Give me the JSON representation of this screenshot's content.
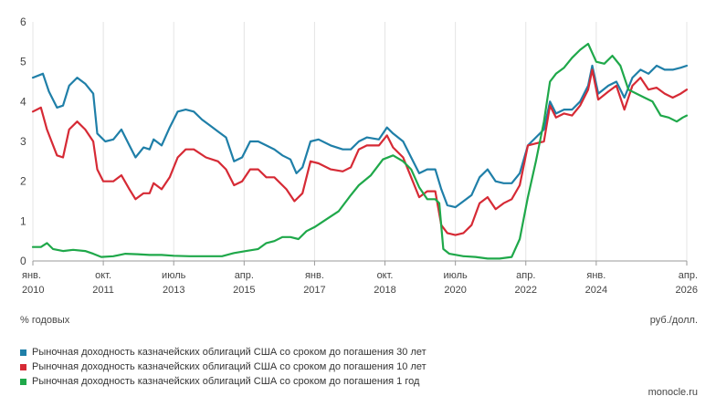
{
  "chart_data": {
    "type": "line",
    "ylabel": "% годовых",
    "unit_note": "руб./долл.",
    "ylim": [
      0,
      6
    ],
    "yticks": [
      "0",
      "1",
      "2",
      "3",
      "4",
      "5",
      "6"
    ],
    "xlim": [
      2010.0,
      2026.25
    ],
    "xticks": [
      {
        "x": 2010.0,
        "month": "янв.",
        "year": "2010"
      },
      {
        "x": 2011.75,
        "month": "окт.",
        "year": "2011"
      },
      {
        "x": 2013.5,
        "month": "июль",
        "year": "2013"
      },
      {
        "x": 2015.25,
        "month": "апр.",
        "year": "2015"
      },
      {
        "x": 2017.0,
        "month": "янв.",
        "year": "2017"
      },
      {
        "x": 2018.75,
        "month": "окт.",
        "year": "2018"
      },
      {
        "x": 2020.5,
        "month": "июль",
        "year": "2020"
      },
      {
        "x": 2022.25,
        "month": "апр.",
        "year": "2022"
      },
      {
        "x": 2024.0,
        "month": "янв.",
        "year": "2024"
      },
      {
        "x": 2026.25,
        "month": "апр.",
        "year": "2026"
      }
    ],
    "grid": "vertical",
    "legend_position": "bottom-left",
    "series": [
      {
        "name": "Рыночная доходность казначейских облигаций США со сроком до погашения 30 лет",
        "color": "#1f7fa8",
        "points": [
          [
            2010.0,
            4.6
          ],
          [
            2010.25,
            4.7
          ],
          [
            2010.4,
            4.25
          ],
          [
            2010.6,
            3.85
          ],
          [
            2010.75,
            3.9
          ],
          [
            2010.9,
            4.4
          ],
          [
            2011.1,
            4.6
          ],
          [
            2011.3,
            4.45
          ],
          [
            2011.5,
            4.2
          ],
          [
            2011.6,
            3.2
          ],
          [
            2011.8,
            3.0
          ],
          [
            2012.0,
            3.05
          ],
          [
            2012.2,
            3.3
          ],
          [
            2012.4,
            2.9
          ],
          [
            2012.55,
            2.6
          ],
          [
            2012.75,
            2.85
          ],
          [
            2012.9,
            2.8
          ],
          [
            2013.0,
            3.05
          ],
          [
            2013.2,
            2.9
          ],
          [
            2013.4,
            3.35
          ],
          [
            2013.6,
            3.75
          ],
          [
            2013.8,
            3.8
          ],
          [
            2014.0,
            3.75
          ],
          [
            2014.2,
            3.55
          ],
          [
            2014.4,
            3.4
          ],
          [
            2014.6,
            3.25
          ],
          [
            2014.8,
            3.1
          ],
          [
            2015.0,
            2.5
          ],
          [
            2015.2,
            2.6
          ],
          [
            2015.4,
            3.0
          ],
          [
            2015.6,
            3.0
          ],
          [
            2015.8,
            2.9
          ],
          [
            2016.0,
            2.8
          ],
          [
            2016.2,
            2.65
          ],
          [
            2016.4,
            2.55
          ],
          [
            2016.55,
            2.2
          ],
          [
            2016.7,
            2.35
          ],
          [
            2016.9,
            3.0
          ],
          [
            2017.1,
            3.05
          ],
          [
            2017.4,
            2.9
          ],
          [
            2017.7,
            2.8
          ],
          [
            2017.9,
            2.8
          ],
          [
            2018.1,
            3.0
          ],
          [
            2018.3,
            3.1
          ],
          [
            2018.6,
            3.05
          ],
          [
            2018.8,
            3.35
          ],
          [
            2018.95,
            3.2
          ],
          [
            2019.2,
            3.0
          ],
          [
            2019.4,
            2.6
          ],
          [
            2019.6,
            2.2
          ],
          [
            2019.8,
            2.3
          ],
          [
            2020.0,
            2.3
          ],
          [
            2020.15,
            1.8
          ],
          [
            2020.3,
            1.4
          ],
          [
            2020.5,
            1.35
          ],
          [
            2020.7,
            1.5
          ],
          [
            2020.9,
            1.65
          ],
          [
            2021.1,
            2.1
          ],
          [
            2021.3,
            2.3
          ],
          [
            2021.5,
            2.0
          ],
          [
            2021.7,
            1.95
          ],
          [
            2021.9,
            1.95
          ],
          [
            2022.1,
            2.2
          ],
          [
            2022.3,
            2.9
          ],
          [
            2022.5,
            3.1
          ],
          [
            2022.7,
            3.3
          ],
          [
            2022.85,
            4.0
          ],
          [
            2023.0,
            3.7
          ],
          [
            2023.2,
            3.8
          ],
          [
            2023.4,
            3.8
          ],
          [
            2023.6,
            4.0
          ],
          [
            2023.8,
            4.4
          ],
          [
            2023.9,
            4.9
          ],
          [
            2024.05,
            4.2
          ],
          [
            2024.3,
            4.4
          ],
          [
            2024.5,
            4.5
          ],
          [
            2024.7,
            4.1
          ],
          [
            2024.9,
            4.6
          ],
          [
            2025.1,
            4.8
          ],
          [
            2025.3,
            4.7
          ],
          [
            2025.5,
            4.9
          ],
          [
            2025.7,
            4.8
          ],
          [
            2025.9,
            4.8
          ],
          [
            2026.1,
            4.85
          ],
          [
            2026.25,
            4.9
          ]
        ]
      },
      {
        "name": "Рыночная доходность казначейских облигаций США со сроком до погашения 10 лет",
        "color": "#d62a35",
        "points": [
          [
            2010.0,
            3.75
          ],
          [
            2010.2,
            3.85
          ],
          [
            2010.35,
            3.3
          ],
          [
            2010.6,
            2.65
          ],
          [
            2010.75,
            2.6
          ],
          [
            2010.9,
            3.3
          ],
          [
            2011.1,
            3.5
          ],
          [
            2011.3,
            3.3
          ],
          [
            2011.5,
            3.0
          ],
          [
            2011.6,
            2.3
          ],
          [
            2011.75,
            2.0
          ],
          [
            2012.0,
            2.0
          ],
          [
            2012.2,
            2.15
          ],
          [
            2012.4,
            1.8
          ],
          [
            2012.55,
            1.55
          ],
          [
            2012.75,
            1.7
          ],
          [
            2012.9,
            1.7
          ],
          [
            2013.0,
            1.95
          ],
          [
            2013.2,
            1.8
          ],
          [
            2013.4,
            2.1
          ],
          [
            2013.6,
            2.6
          ],
          [
            2013.8,
            2.8
          ],
          [
            2014.0,
            2.8
          ],
          [
            2014.3,
            2.6
          ],
          [
            2014.6,
            2.5
          ],
          [
            2014.8,
            2.3
          ],
          [
            2015.0,
            1.9
          ],
          [
            2015.2,
            2.0
          ],
          [
            2015.4,
            2.3
          ],
          [
            2015.6,
            2.3
          ],
          [
            2015.8,
            2.1
          ],
          [
            2016.0,
            2.1
          ],
          [
            2016.3,
            1.8
          ],
          [
            2016.5,
            1.5
          ],
          [
            2016.7,
            1.7
          ],
          [
            2016.9,
            2.5
          ],
          [
            2017.1,
            2.45
          ],
          [
            2017.4,
            2.3
          ],
          [
            2017.7,
            2.25
          ],
          [
            2017.9,
            2.35
          ],
          [
            2018.1,
            2.8
          ],
          [
            2018.3,
            2.9
          ],
          [
            2018.6,
            2.9
          ],
          [
            2018.8,
            3.15
          ],
          [
            2018.95,
            2.85
          ],
          [
            2019.2,
            2.6
          ],
          [
            2019.4,
            2.1
          ],
          [
            2019.6,
            1.6
          ],
          [
            2019.8,
            1.75
          ],
          [
            2020.0,
            1.75
          ],
          [
            2020.15,
            0.9
          ],
          [
            2020.3,
            0.7
          ],
          [
            2020.5,
            0.65
          ],
          [
            2020.7,
            0.7
          ],
          [
            2020.9,
            0.9
          ],
          [
            2021.1,
            1.45
          ],
          [
            2021.3,
            1.6
          ],
          [
            2021.5,
            1.3
          ],
          [
            2021.7,
            1.45
          ],
          [
            2021.9,
            1.55
          ],
          [
            2022.1,
            1.9
          ],
          [
            2022.3,
            2.9
          ],
          [
            2022.5,
            2.95
          ],
          [
            2022.7,
            3.0
          ],
          [
            2022.85,
            3.9
          ],
          [
            2023.0,
            3.6
          ],
          [
            2023.2,
            3.7
          ],
          [
            2023.4,
            3.65
          ],
          [
            2023.6,
            3.9
          ],
          [
            2023.8,
            4.3
          ],
          [
            2023.9,
            4.8
          ],
          [
            2024.05,
            4.05
          ],
          [
            2024.3,
            4.25
          ],
          [
            2024.5,
            4.4
          ],
          [
            2024.7,
            3.8
          ],
          [
            2024.9,
            4.4
          ],
          [
            2025.1,
            4.6
          ],
          [
            2025.3,
            4.3
          ],
          [
            2025.5,
            4.35
          ],
          [
            2025.7,
            4.2
          ],
          [
            2025.9,
            4.1
          ],
          [
            2026.1,
            4.2
          ],
          [
            2026.25,
            4.3
          ]
        ]
      },
      {
        "name": "Рыночная доходность казначейских облигаций США со сроком до погашения 1 год",
        "color": "#1fa84a",
        "points": [
          [
            2010.0,
            0.35
          ],
          [
            2010.2,
            0.35
          ],
          [
            2010.35,
            0.45
          ],
          [
            2010.5,
            0.3
          ],
          [
            2010.75,
            0.25
          ],
          [
            2011.0,
            0.28
          ],
          [
            2011.3,
            0.25
          ],
          [
            2011.5,
            0.18
          ],
          [
            2011.7,
            0.1
          ],
          [
            2012.0,
            0.12
          ],
          [
            2012.3,
            0.18
          ],
          [
            2012.6,
            0.17
          ],
          [
            2012.9,
            0.15
          ],
          [
            2013.2,
            0.15
          ],
          [
            2013.5,
            0.13
          ],
          [
            2013.9,
            0.12
          ],
          [
            2014.3,
            0.12
          ],
          [
            2014.7,
            0.12
          ],
          [
            2015.0,
            0.2
          ],
          [
            2015.3,
            0.25
          ],
          [
            2015.6,
            0.3
          ],
          [
            2015.8,
            0.45
          ],
          [
            2016.0,
            0.5
          ],
          [
            2016.2,
            0.6
          ],
          [
            2016.4,
            0.6
          ],
          [
            2016.6,
            0.55
          ],
          [
            2016.8,
            0.75
          ],
          [
            2017.0,
            0.85
          ],
          [
            2017.3,
            1.05
          ],
          [
            2017.6,
            1.25
          ],
          [
            2017.9,
            1.65
          ],
          [
            2018.1,
            1.9
          ],
          [
            2018.4,
            2.15
          ],
          [
            2018.7,
            2.55
          ],
          [
            2018.95,
            2.65
          ],
          [
            2019.2,
            2.5
          ],
          [
            2019.4,
            2.3
          ],
          [
            2019.6,
            1.85
          ],
          [
            2019.8,
            1.55
          ],
          [
            2020.0,
            1.55
          ],
          [
            2020.1,
            1.45
          ],
          [
            2020.2,
            0.3
          ],
          [
            2020.35,
            0.18
          ],
          [
            2020.7,
            0.12
          ],
          [
            2021.0,
            0.1
          ],
          [
            2021.3,
            0.06
          ],
          [
            2021.6,
            0.06
          ],
          [
            2021.9,
            0.1
          ],
          [
            2022.1,
            0.55
          ],
          [
            2022.3,
            1.6
          ],
          [
            2022.5,
            2.5
          ],
          [
            2022.7,
            3.5
          ],
          [
            2022.85,
            4.5
          ],
          [
            2023.0,
            4.7
          ],
          [
            2023.2,
            4.85
          ],
          [
            2023.4,
            5.1
          ],
          [
            2023.6,
            5.3
          ],
          [
            2023.8,
            5.45
          ],
          [
            2024.0,
            5.0
          ],
          [
            2024.2,
            4.95
          ],
          [
            2024.4,
            5.15
          ],
          [
            2024.6,
            4.9
          ],
          [
            2024.8,
            4.3
          ],
          [
            2025.0,
            4.2
          ],
          [
            2025.2,
            4.1
          ],
          [
            2025.4,
            4.0
          ],
          [
            2025.6,
            3.65
          ],
          [
            2025.8,
            3.6
          ],
          [
            2026.0,
            3.5
          ],
          [
            2026.15,
            3.6
          ],
          [
            2026.25,
            3.65
          ]
        ]
      }
    ]
  },
  "source": "monocle.ru"
}
